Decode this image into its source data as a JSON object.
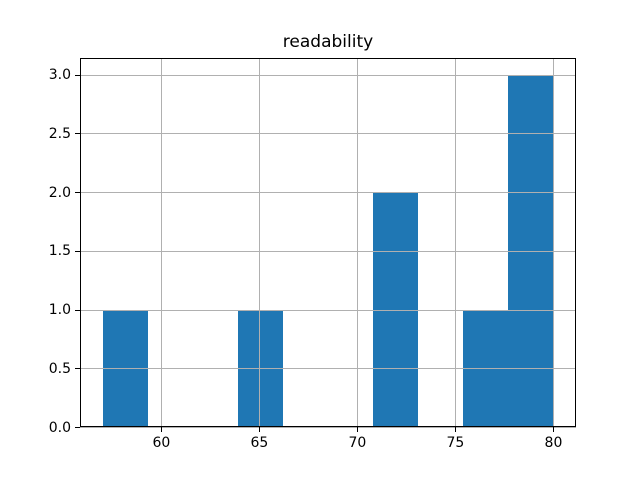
{
  "figure": {
    "background": "#ffffff"
  },
  "chart_data": {
    "type": "bar",
    "subtype": "histogram",
    "title": "readability",
    "xlabel": "",
    "ylabel": "",
    "bin_edges": [
      57.0,
      59.3,
      61.6,
      63.9,
      66.2,
      68.5,
      70.8,
      73.1,
      75.4,
      77.7,
      80.0
    ],
    "counts": [
      1,
      0,
      0,
      1,
      0,
      0,
      2,
      0,
      1,
      3
    ],
    "xticks": [
      60,
      65,
      70,
      75,
      80
    ],
    "yticks": [
      0.0,
      0.5,
      1.0,
      1.5,
      2.0,
      2.5,
      3.0
    ],
    "xtick_labels": [
      "60",
      "65",
      "70",
      "75",
      "80"
    ],
    "ytick_labels": [
      "0.0",
      "0.5",
      "1.0",
      "1.5",
      "2.0",
      "2.5",
      "3.0"
    ],
    "xlim": [
      55.85,
      81.15
    ],
    "ylim": [
      0,
      3.15
    ],
    "grid": true,
    "legend": false,
    "bar_color": "#1f77b4",
    "grid_color": "#b0b0b0",
    "spine_color": "#000000",
    "text_color": "#000000"
  }
}
